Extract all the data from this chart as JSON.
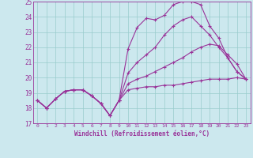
{
  "xlabel": "Windchill (Refroidissement éolien,°C)",
  "bg_color": "#cce8ee",
  "line_color": "#993399",
  "grid_color": "#99cccc",
  "xlim": [
    -0.5,
    23.5
  ],
  "ylim": [
    17,
    25
  ],
  "yticks": [
    17,
    18,
    19,
    20,
    21,
    22,
    23,
    24,
    25
  ],
  "xticks": [
    0,
    1,
    2,
    3,
    4,
    5,
    6,
    7,
    8,
    9,
    10,
    11,
    12,
    13,
    14,
    15,
    16,
    17,
    18,
    19,
    20,
    21,
    22,
    23
  ],
  "series": [
    [
      18.5,
      18.0,
      18.6,
      19.1,
      19.2,
      19.2,
      18.8,
      18.3,
      17.5,
      18.5,
      21.9,
      23.3,
      23.9,
      23.8,
      24.1,
      24.8,
      25.0,
      25.0,
      24.8,
      23.4,
      22.6,
      21.3,
      20.4,
      19.9
    ],
    [
      18.5,
      18.0,
      18.6,
      19.1,
      19.2,
      19.2,
      18.8,
      18.3,
      17.5,
      18.5,
      20.3,
      21.0,
      21.5,
      22.0,
      22.8,
      23.4,
      23.8,
      24.0,
      23.4,
      22.8,
      22.0,
      21.3,
      20.4,
      19.9
    ],
    [
      18.5,
      18.0,
      18.6,
      19.1,
      19.2,
      19.2,
      18.8,
      18.3,
      17.5,
      18.5,
      19.2,
      19.3,
      19.4,
      19.4,
      19.5,
      19.5,
      19.6,
      19.7,
      19.8,
      19.9,
      19.9,
      19.9,
      20.0,
      19.9
    ],
    [
      18.5,
      18.0,
      18.6,
      19.1,
      19.2,
      19.2,
      18.8,
      18.3,
      17.5,
      18.5,
      19.6,
      19.9,
      20.1,
      20.4,
      20.7,
      21.0,
      21.3,
      21.7,
      22.0,
      22.2,
      22.1,
      21.5,
      20.9,
      19.9
    ]
  ]
}
